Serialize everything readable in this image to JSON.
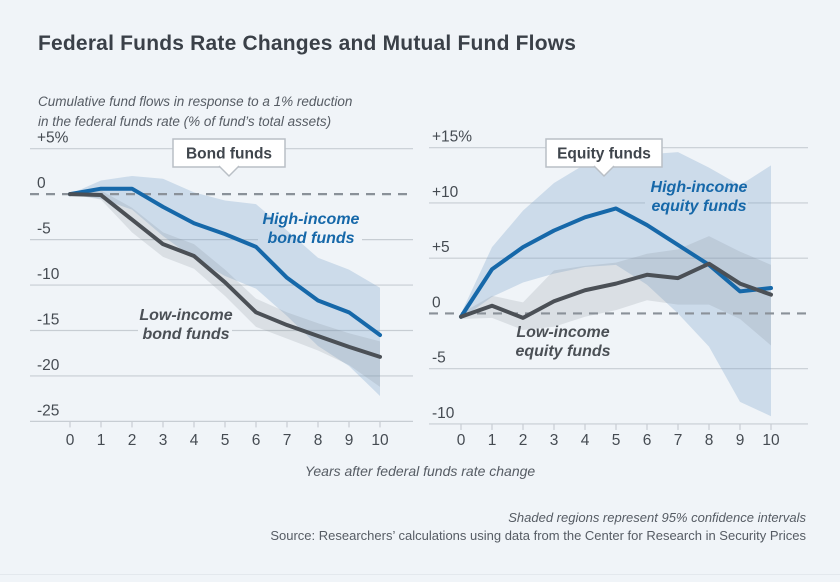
{
  "page": {
    "background": "#f0f4f8",
    "title": "Federal Funds Rate Changes and Mutual Fund Flows",
    "subtitle_lines": [
      "Cumulative fund flows in response to a 1% reduction",
      "in the federal funds rate (% of fund’s total assets)"
    ],
    "x_axis_label": "Years after federal funds rate change",
    "footnote": "Shaded regions represent 95% confidence intervals",
    "source": "Source: Researchers’ calculations using data from the Center for Research in Security Prices",
    "colors": {
      "title_text": "#3a4048",
      "muted_text": "#565c64",
      "axis_text": "#454b52",
      "grid": "#c7cdd3",
      "zero_dash": "#8a9199",
      "high_income": "#1668a9",
      "low_income": "#4b5056",
      "high_band": "rgba(121,161,201,0.30)",
      "low_band": "rgba(130,140,150,0.20)",
      "badge_bg": "#ffffff",
      "badge_border": "#b9bfc6",
      "badge_text": "#3f454c"
    }
  },
  "chart_data": [
    {
      "type": "line",
      "badge": "Bond funds",
      "x": [
        0,
        1,
        2,
        3,
        4,
        5,
        6,
        7,
        8,
        9,
        10
      ],
      "ylim": [
        -25,
        5
      ],
      "yticks": [
        {
          "v": 5,
          "label": "+5%"
        },
        {
          "v": 0,
          "label": "0"
        },
        {
          "v": -5,
          "label": "-5"
        },
        {
          "v": -10,
          "label": "-10"
        },
        {
          "v": -15,
          "label": "-15"
        },
        {
          "v": -20,
          "label": "-20"
        },
        {
          "v": -25,
          "label": "-25"
        }
      ],
      "series": [
        {
          "name": "High-income bond funds",
          "label_lines": [
            "High-income",
            "bond funds"
          ],
          "role": "high",
          "values": [
            0,
            0.6,
            0.6,
            -1.4,
            -3.2,
            -4.4,
            -5.8,
            -9.2,
            -11.7,
            -13.0,
            -15.5
          ],
          "ci_upper": [
            0,
            1.5,
            2.0,
            1.7,
            0.2,
            -0.7,
            -1.1,
            -4.0,
            -7.0,
            -8.3,
            -10.3
          ],
          "ci_lower": [
            0,
            -0.5,
            -1.7,
            -4.6,
            -7.1,
            -9.0,
            -10.4,
            -13.4,
            -16.7,
            -18.9,
            -22.2
          ]
        },
        {
          "name": "Low-income bond funds",
          "label_lines": [
            "Low-income",
            "bond funds"
          ],
          "role": "low",
          "values": [
            0,
            -0.1,
            -2.8,
            -5.5,
            -6.8,
            -9.7,
            -13.0,
            -14.4,
            -15.6,
            -16.8,
            -17.9
          ],
          "ci_upper": [
            0,
            0.4,
            -1.5,
            -4.2,
            -5.5,
            -8.3,
            -11.5,
            -13.0,
            -14.2,
            -15.3,
            -16.2
          ],
          "ci_lower": [
            0,
            -0.6,
            -4.2,
            -6.9,
            -8.2,
            -11.2,
            -14.6,
            -15.9,
            -17.2,
            -18.8,
            -21.2
          ]
        }
      ]
    },
    {
      "type": "line",
      "badge": "Equity funds",
      "x": [
        0,
        1,
        2,
        3,
        4,
        5,
        6,
        7,
        8,
        9,
        10
      ],
      "ylim": [
        -10,
        15
      ],
      "yticks": [
        {
          "v": 15,
          "label": "+15%"
        },
        {
          "v": 10,
          "label": "+10"
        },
        {
          "v": 5,
          "label": "+5"
        },
        {
          "v": 0,
          "label": "0"
        },
        {
          "v": -5,
          "label": "-5"
        },
        {
          "v": -10,
          "label": "-10"
        }
      ],
      "series": [
        {
          "name": "High-income equity funds",
          "label_lines": [
            "High-income",
            "equity funds"
          ],
          "role": "high",
          "values": [
            -0.3,
            4.0,
            6.0,
            7.5,
            8.7,
            9.5,
            8.0,
            6.2,
            4.4,
            2.0,
            2.3
          ],
          "ci_upper": [
            0,
            6.0,
            9.3,
            11.8,
            13.5,
            14.3,
            14.4,
            14.6,
            13.2,
            11.6,
            13.4
          ],
          "ci_lower": [
            -0.5,
            1.5,
            2.8,
            3.6,
            4.2,
            4.4,
            2.6,
            0.0,
            -3.0,
            -8.0,
            -9.3
          ]
        },
        {
          "name": "Low-income equity funds",
          "label_lines": [
            "Low-income",
            "equity funds"
          ],
          "role": "low",
          "values": [
            -0.3,
            0.7,
            -0.4,
            1.1,
            2.1,
            2.7,
            3.5,
            3.2,
            4.5,
            2.7,
            1.7
          ],
          "ci_upper": [
            0,
            1.6,
            1.0,
            3.9,
            4.3,
            4.6,
            5.4,
            5.8,
            7.0,
            5.6,
            4.4
          ],
          "ci_lower": [
            -0.5,
            -0.4,
            -1.5,
            -1.2,
            -0.3,
            0.3,
            1.2,
            0.8,
            0.8,
            -0.5,
            -2.9
          ]
        }
      ]
    }
  ]
}
